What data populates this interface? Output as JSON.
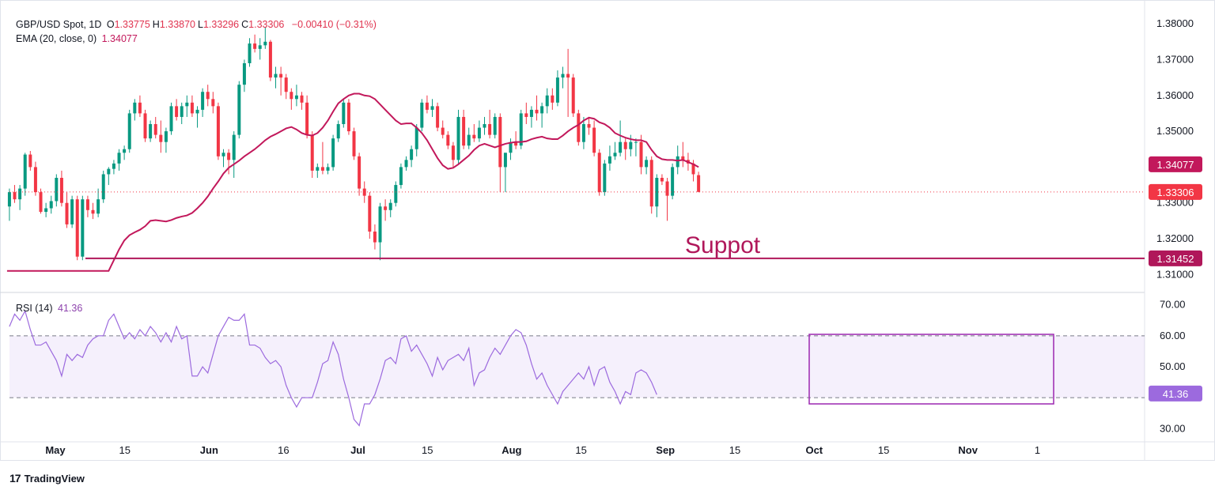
{
  "header": {
    "symbol": "GBP/USD Spot, 1D",
    "ohlc": [
      {
        "k": "O",
        "v": "1.33775"
      },
      {
        "k": "H",
        "v": "1.33870"
      },
      {
        "k": "L",
        "v": "1.33296"
      },
      {
        "k": "C",
        "v": "1.33306"
      }
    ],
    "change": "−0.00410 (−0.31%)",
    "ema_label": "EMA (20, close, 0)",
    "ema_value": "1.34077",
    "rsi_label": "RSI (14)",
    "rsi_value": "41.36"
  },
  "brand": {
    "logo": "17",
    "name": "TradingView"
  },
  "annotation": "Suppot",
  "colors": {
    "up": "#089981",
    "down": "#f23645",
    "ema": "#c2185b",
    "rsi": "#9c6ade",
    "support": "#b0175a",
    "box": "#9c27b0"
  },
  "chart_data": {
    "type": "candlestick",
    "price_ticks": [
      "1.38000",
      "1.37000",
      "1.36000",
      "1.35000",
      "1.34000",
      "1.33000",
      "1.32000",
      "1.31000"
    ],
    "price_range": [
      1.305,
      1.384
    ],
    "x_labels": [
      {
        "label": "May",
        "t": 0
      },
      {
        "label": "15",
        "t": 14
      },
      {
        "label": "Jun",
        "t": 31
      },
      {
        "label": "16",
        "t": 46
      },
      {
        "label": "Jul",
        "t": 61
      },
      {
        "label": "15",
        "t": 75
      },
      {
        "label": "Aug",
        "t": 92
      },
      {
        "label": "15",
        "t": 106
      },
      {
        "label": "Sep",
        "t": 123
      },
      {
        "label": "15",
        "t": 137
      },
      {
        "label": "Oct",
        "t": 153
      },
      {
        "label": "15",
        "t": 167
      },
      {
        "label": "Nov",
        "t": 184
      },
      {
        "label": "1",
        "t": 198
      }
    ],
    "candles": [
      [
        1.329,
        1.334,
        1.325,
        1.333
      ],
      [
        1.333,
        1.335,
        1.33,
        1.331
      ],
      [
        1.331,
        1.335,
        1.328,
        1.334
      ],
      [
        1.334,
        1.344,
        1.332,
        1.3435
      ],
      [
        1.3435,
        1.3445,
        1.339,
        1.34
      ],
      [
        1.34,
        1.3415,
        1.332,
        1.333
      ],
      [
        1.333,
        1.334,
        1.327,
        1.3275
      ],
      [
        1.3275,
        1.33,
        1.326,
        1.3285
      ],
      [
        1.3285,
        1.332,
        1.327,
        1.3305
      ],
      [
        1.3305,
        1.338,
        1.329,
        1.337
      ],
      [
        1.337,
        1.339,
        1.329,
        1.33
      ],
      [
        1.33,
        1.333,
        1.323,
        1.324
      ],
      [
        1.324,
        1.332,
        1.323,
        1.331
      ],
      [
        1.331,
        1.332,
        1.314,
        1.315
      ],
      [
        1.315,
        1.332,
        1.314,
        1.331
      ],
      [
        1.331,
        1.332,
        1.326,
        1.328
      ],
      [
        1.328,
        1.33,
        1.3255,
        1.327
      ],
      [
        1.327,
        1.334,
        1.326,
        1.331
      ],
      [
        1.331,
        1.339,
        1.33,
        1.338
      ],
      [
        1.338,
        1.34,
        1.335,
        1.3395
      ],
      [
        1.3395,
        1.342,
        1.338,
        1.341
      ],
      [
        1.341,
        1.345,
        1.339,
        1.344
      ],
      [
        1.344,
        1.346,
        1.342,
        1.345
      ],
      [
        1.345,
        1.356,
        1.344,
        1.355
      ],
      [
        1.355,
        1.359,
        1.353,
        1.358
      ],
      [
        1.358,
        1.36,
        1.354,
        1.355
      ],
      [
        1.355,
        1.356,
        1.347,
        1.348
      ],
      [
        1.348,
        1.353,
        1.347,
        1.352
      ],
      [
        1.352,
        1.354,
        1.348,
        1.349
      ],
      [
        1.349,
        1.353,
        1.344,
        1.347
      ],
      [
        1.347,
        1.351,
        1.344,
        1.35
      ],
      [
        1.35,
        1.358,
        1.349,
        1.357
      ],
      [
        1.357,
        1.359,
        1.353,
        1.354
      ],
      [
        1.354,
        1.358,
        1.352,
        1.357
      ],
      [
        1.357,
        1.36,
        1.354,
        1.358
      ],
      [
        1.358,
        1.36,
        1.354,
        1.355
      ],
      [
        1.355,
        1.357,
        1.351,
        1.356
      ],
      [
        1.356,
        1.362,
        1.354,
        1.361
      ],
      [
        1.361,
        1.363,
        1.357,
        1.359
      ],
      [
        1.359,
        1.361,
        1.355,
        1.357
      ],
      [
        1.357,
        1.358,
        1.342,
        1.343
      ],
      [
        1.343,
        1.345,
        1.34,
        1.344
      ],
      [
        1.344,
        1.345,
        1.338,
        1.342
      ],
      [
        1.342,
        1.35,
        1.337,
        1.349
      ],
      [
        1.349,
        1.364,
        1.348,
        1.363
      ],
      [
        1.363,
        1.37,
        1.361,
        1.369
      ],
      [
        1.369,
        1.376,
        1.368,
        1.3745
      ],
      [
        1.3745,
        1.377,
        1.372,
        1.373
      ],
      [
        1.373,
        1.376,
        1.37,
        1.374
      ],
      [
        1.374,
        1.379,
        1.373,
        1.375
      ],
      [
        1.375,
        1.3755,
        1.364,
        1.365
      ],
      [
        1.365,
        1.368,
        1.362,
        1.366
      ],
      [
        1.366,
        1.368,
        1.36,
        1.365
      ],
      [
        1.365,
        1.366,
        1.359,
        1.361
      ],
      [
        1.361,
        1.362,
        1.356,
        1.359
      ],
      [
        1.359,
        1.363,
        1.357,
        1.36
      ],
      [
        1.36,
        1.361,
        1.356,
        1.358
      ],
      [
        1.358,
        1.36,
        1.348,
        1.349
      ],
      [
        1.349,
        1.35,
        1.337,
        1.339
      ],
      [
        1.339,
        1.341,
        1.337,
        1.34
      ],
      [
        1.34,
        1.347,
        1.338,
        1.339
      ],
      [
        1.339,
        1.341,
        1.338,
        1.34
      ],
      [
        1.34,
        1.349,
        1.339,
        1.348
      ],
      [
        1.348,
        1.353,
        1.347,
        1.352
      ],
      [
        1.352,
        1.359,
        1.351,
        1.358
      ],
      [
        1.358,
        1.359,
        1.349,
        1.35
      ],
      [
        1.35,
        1.351,
        1.342,
        1.343
      ],
      [
        1.343,
        1.344,
        1.332,
        1.334
      ],
      [
        1.334,
        1.336,
        1.33,
        1.332
      ],
      [
        1.332,
        1.333,
        1.32,
        1.322
      ],
      [
        1.322,
        1.324,
        1.317,
        1.319
      ],
      [
        1.319,
        1.33,
        1.314,
        1.329
      ],
      [
        1.329,
        1.331,
        1.325,
        1.328
      ],
      [
        1.328,
        1.331,
        1.326,
        1.33
      ],
      [
        1.33,
        1.336,
        1.329,
        1.335
      ],
      [
        1.335,
        1.341,
        1.334,
        1.34
      ],
      [
        1.34,
        1.343,
        1.339,
        1.342
      ],
      [
        1.342,
        1.346,
        1.34,
        1.345
      ],
      [
        1.345,
        1.352,
        1.343,
        1.351
      ],
      [
        1.351,
        1.359,
        1.35,
        1.358
      ],
      [
        1.358,
        1.36,
        1.355,
        1.356
      ],
      [
        1.356,
        1.359,
        1.354,
        1.357
      ],
      [
        1.357,
        1.358,
        1.35,
        1.351
      ],
      [
        1.351,
        1.353,
        1.348,
        1.349
      ],
      [
        1.349,
        1.35,
        1.345,
        1.346
      ],
      [
        1.346,
        1.347,
        1.34,
        1.342
      ],
      [
        1.342,
        1.356,
        1.341,
        1.354
      ],
      [
        1.354,
        1.356,
        1.345,
        1.346
      ],
      [
        1.346,
        1.351,
        1.345,
        1.349
      ],
      [
        1.349,
        1.352,
        1.347,
        1.348
      ],
      [
        1.348,
        1.353,
        1.347,
        1.351
      ],
      [
        1.351,
        1.354,
        1.349,
        1.352
      ],
      [
        1.352,
        1.356,
        1.348,
        1.349
      ],
      [
        1.349,
        1.355,
        1.348,
        1.354
      ],
      [
        1.354,
        1.355,
        1.333,
        1.34
      ],
      [
        1.34,
        1.344,
        1.333,
        1.344
      ],
      [
        1.344,
        1.348,
        1.342,
        1.347
      ],
      [
        1.347,
        1.35,
        1.345,
        1.346
      ],
      [
        1.346,
        1.356,
        1.345,
        1.355
      ],
      [
        1.355,
        1.358,
        1.352,
        1.354
      ],
      [
        1.354,
        1.357,
        1.351,
        1.356
      ],
      [
        1.356,
        1.36,
        1.353,
        1.355
      ],
      [
        1.355,
        1.358,
        1.351,
        1.357
      ],
      [
        1.357,
        1.362,
        1.355,
        1.36
      ],
      [
        1.36,
        1.362,
        1.356,
        1.358
      ],
      [
        1.358,
        1.367,
        1.357,
        1.365
      ],
      [
        1.365,
        1.368,
        1.362,
        1.366
      ],
      [
        1.366,
        1.373,
        1.354,
        1.365
      ],
      [
        1.365,
        1.366,
        1.354,
        1.355
      ],
      [
        1.355,
        1.356,
        1.346,
        1.347
      ],
      [
        1.347,
        1.354,
        1.345,
        1.352
      ],
      [
        1.352,
        1.354,
        1.349,
        1.351
      ],
      [
        1.351,
        1.353,
        1.343,
        1.344
      ],
      [
        1.344,
        1.345,
        1.332,
        1.333
      ],
      [
        1.333,
        1.342,
        1.332,
        1.341
      ],
      [
        1.341,
        1.346,
        1.339,
        1.343
      ],
      [
        1.343,
        1.347,
        1.342,
        1.344
      ],
      [
        1.344,
        1.353,
        1.343,
        1.347
      ],
      [
        1.347,
        1.348,
        1.342,
        1.345
      ],
      [
        1.345,
        1.349,
        1.343,
        1.347
      ],
      [
        1.347,
        1.348,
        1.343,
        1.347
      ],
      [
        1.347,
        1.349,
        1.338,
        1.34
      ],
      [
        1.34,
        1.343,
        1.338,
        1.342
      ],
      [
        1.342,
        1.343,
        1.327,
        1.329
      ],
      [
        1.329,
        1.338,
        1.326,
        1.337
      ],
      [
        1.337,
        1.338,
        1.335,
        1.336
      ],
      [
        1.336,
        1.337,
        1.325,
        1.332
      ],
      [
        1.332,
        1.341,
        1.331,
        1.34
      ],
      [
        1.34,
        1.346,
        1.338,
        1.343
      ],
      [
        1.343,
        1.347,
        1.34,
        1.342
      ],
      [
        1.342,
        1.344,
        1.339,
        1.341
      ],
      [
        1.341,
        1.342,
        1.336,
        1.338
      ],
      [
        1.33775,
        1.3387,
        1.33296,
        1.33306
      ]
    ],
    "ema": [
      1.311,
      1.314,
      1.317,
      1.3195,
      1.321,
      1.3218,
      1.3225,
      1.3235,
      1.325,
      1.3252,
      1.325,
      1.3248,
      1.3252,
      1.3258,
      1.3262,
      1.3265,
      1.3272,
      1.3285,
      1.33,
      1.3318,
      1.334,
      1.336,
      1.3382,
      1.3398,
      1.3408,
      1.3418,
      1.343,
      1.344,
      1.345,
      1.3462,
      1.3475,
      1.3485,
      1.3492,
      1.35,
      1.3508,
      1.3512,
      1.3505,
      1.3495,
      1.349,
      1.3488,
      1.3495,
      1.351,
      1.353,
      1.3555,
      1.3578,
      1.359,
      1.36,
      1.3605,
      1.3605,
      1.36,
      1.3598,
      1.359,
      1.3575,
      1.356,
      1.3545,
      1.353,
      1.352,
      1.3522,
      1.3522,
      1.351,
      1.3495,
      1.3475,
      1.345,
      1.3425,
      1.3405,
      1.3395,
      1.3398,
      1.3408,
      1.342,
      1.3432,
      1.3448,
      1.346,
      1.3465,
      1.346,
      1.3455,
      1.346,
      1.3465,
      1.3468,
      1.347,
      1.347,
      1.3472,
      1.3478,
      1.3482,
      1.3485,
      1.348,
      1.3478,
      1.3478,
      1.3488,
      1.35,
      1.351,
      1.3518,
      1.353,
      1.3538,
      1.3535,
      1.3525,
      1.352,
      1.351,
      1.3495,
      1.3488,
      1.3482,
      1.3478,
      1.3475,
      1.3475,
      1.347,
      1.3448,
      1.343,
      1.3422,
      1.342,
      1.342,
      1.3418,
      1.342,
      1.3414,
      1.3408,
      1.34
    ],
    "support": {
      "value": 1.31452,
      "label": "1.31452"
    },
    "last_price": {
      "value": 1.33306,
      "label": "1.33306"
    },
    "ema_last": {
      "value": 1.34077,
      "label": "1.34077"
    },
    "rsi": {
      "ticks": [
        "70.00",
        "60.00",
        "50.00",
        "30.00"
      ],
      "tick_values": [
        70,
        60,
        50,
        30
      ],
      "bands": [
        40,
        60
      ],
      "range": [
        26,
        74
      ],
      "last": {
        "value": 41.36,
        "label": "41.36"
      },
      "values": [
        63,
        67,
        65,
        68,
        62,
        57,
        57,
        58,
        55,
        52,
        47,
        54,
        52,
        54,
        53,
        57,
        59,
        60,
        60,
        65,
        67,
        63,
        59,
        61,
        59,
        62,
        60,
        63,
        61,
        58,
        61,
        58,
        63,
        59,
        60,
        47,
        47,
        50,
        48,
        54,
        60,
        63,
        66,
        65,
        65,
        67,
        57,
        57,
        56,
        53,
        51,
        52,
        50,
        44,
        40,
        37,
        40,
        40,
        40,
        45,
        51,
        52,
        58,
        54,
        46,
        40,
        33,
        31,
        38,
        38,
        41,
        46,
        52,
        53,
        51,
        59,
        60,
        55,
        57,
        54,
        51,
        47,
        53,
        49,
        52,
        53,
        54,
        52,
        56,
        44,
        48,
        49,
        53,
        56,
        54,
        57,
        60,
        62,
        61,
        57,
        51,
        46,
        48,
        44,
        41,
        38,
        42,
        44,
        46,
        48,
        46,
        50,
        44,
        49,
        50,
        45,
        42,
        38,
        42,
        41,
        48,
        49,
        48,
        45,
        41
      ]
    }
  }
}
